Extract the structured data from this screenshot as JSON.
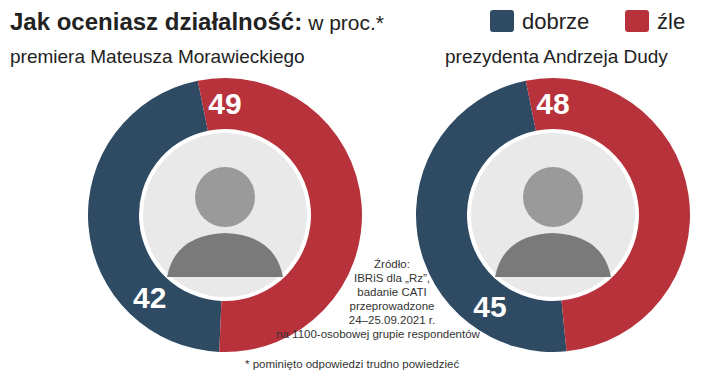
{
  "title": "Jak oceniasz działalność:",
  "title_suffix": "w proc.*",
  "chart_data": [
    {
      "type": "donut",
      "title": "premiera Mateusza Morawieckiego",
      "categories": [
        "dobrze",
        "źle"
      ],
      "values": [
        42,
        49
      ],
      "colors": [
        "#2f4a63",
        "#b7323b"
      ],
      "data_labels": true,
      "legend": "top-right"
    },
    {
      "type": "donut",
      "title": "prezydenta Andrzeja Dudy",
      "categories": [
        "dobrze",
        "źle"
      ],
      "values": [
        45,
        48
      ],
      "colors": [
        "#2f4a63",
        "#b7323b"
      ],
      "data_labels": true
    }
  ],
  "source": [
    "Źródło:",
    "IBRiS dla „Rz”,",
    "badanie CATI",
    "przeprowadzone",
    "24–25.09.2021 r.",
    "na 1100-osobowej grupie respondentów"
  ],
  "footnote": "* pominięto odpowiedzi trudno powiedzieć"
}
